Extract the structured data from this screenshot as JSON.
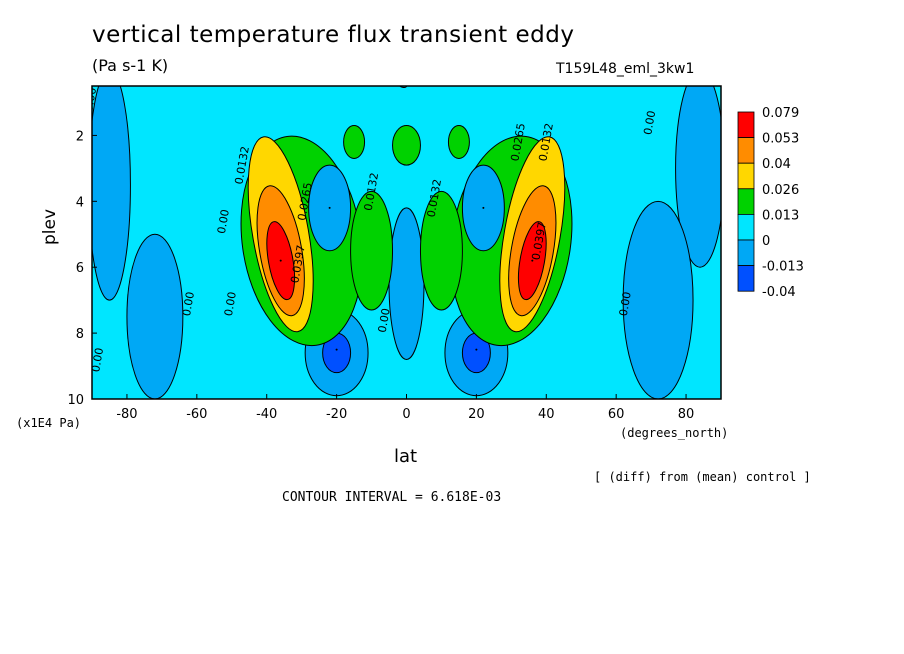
{
  "chart_data": {
    "type": "heatmap",
    "title": "vertical temperature flux transient eddy",
    "units": "(Pa s-1 K)",
    "run_id": "T159L48_eml_3kw1",
    "xlabel": "lat",
    "x_unit": "(degrees_north)",
    "ylabel": "plev",
    "y_unit": "(x1E4 Pa)",
    "xlim": [
      -90,
      90
    ],
    "ylim": [
      10,
      0.5
    ],
    "x_ticks": [
      "-80",
      "-60",
      "-40",
      "-20",
      "0",
      "20",
      "40",
      "60",
      "80"
    ],
    "y_ticks": [
      "2",
      "4",
      "6",
      "8",
      "10"
    ],
    "x_tick_values": [
      -80,
      -60,
      -40,
      -20,
      0,
      20,
      40,
      60,
      80
    ],
    "y_tick_values": [
      2,
      4,
      6,
      8,
      10
    ],
    "legend": {
      "position": "right",
      "labels": [
        "0.079",
        "0.053",
        "0.04",
        "0.026",
        "0.013",
        "0",
        "-0.013",
        "-0.04"
      ],
      "colors": [
        "#ff0000",
        "#ff8c00",
        "#ffd700",
        "#00d200",
        "#00e6ff",
        "#00a8f5",
        "#0050ff"
      ]
    },
    "features": [
      {
        "name": "SH max",
        "lat": -36,
        "plev": 5.8,
        "value": 0.079
      },
      {
        "name": "NH max",
        "lat": 36,
        "plev": 5.8,
        "value": 0.079
      },
      {
        "name": "SH upper min",
        "lat": -22,
        "plev": 4.2,
        "value": -0.013
      },
      {
        "name": "NH upper min",
        "lat": 22,
        "plev": 4.2,
        "value": -0.013
      },
      {
        "name": "SH lower min",
        "lat": -20,
        "plev": 8.5,
        "value": -0.013
      },
      {
        "name": "NH lower min",
        "lat": 20,
        "plev": 8.5,
        "value": -0.013
      }
    ],
    "contour_labels": [
      "0.00",
      "0.0132",
      "0.0265",
      "0.0397",
      "0.00",
      "0.0132",
      "0.0132",
      "0.00",
      "0.00",
      "0.00",
      "0.0397",
      "0.0265",
      "0.0132",
      "0.00",
      "0.00",
      "0.00",
      "0.00"
    ]
  },
  "annotations": {
    "diff_note": "[ (diff) from (mean) control ]",
    "contour_interval": "CONTOUR INTERVAL = 6.618E-03"
  }
}
